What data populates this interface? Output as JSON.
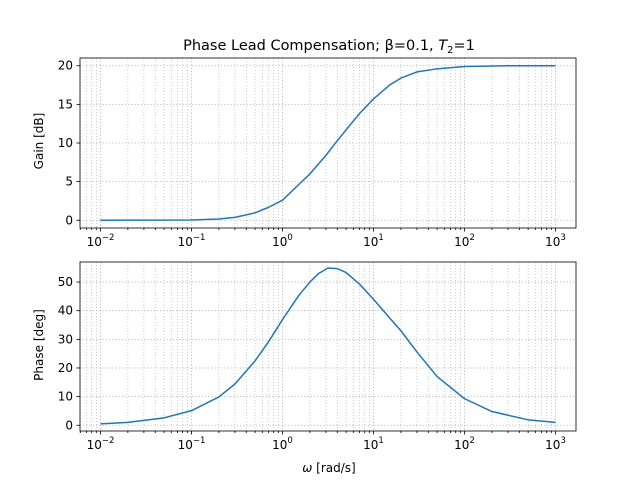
{
  "title": {
    "prefix": "Phase Lead Compensation; β=0.1, ",
    "t_symbol": "T",
    "t_sub": "2",
    "t_value": "=1"
  },
  "colors": {
    "series": "#1f77b4"
  },
  "chart_data": [
    {
      "type": "line",
      "name": "gain",
      "xscale": "log",
      "xlim": [
        0.01,
        1000
      ],
      "ylim": [
        -1,
        21
      ],
      "grid": true,
      "ylabel": "Gain [dB]",
      "xlabel": "",
      "x_ticks": [
        {
          "base": "10",
          "exp": "−2"
        },
        {
          "base": "10",
          "exp": "−1"
        },
        {
          "base": "10",
          "exp": "0"
        },
        {
          "base": "10",
          "exp": "1"
        },
        {
          "base": "10",
          "exp": "2"
        },
        {
          "base": "10",
          "exp": "3"
        }
      ],
      "y_ticks": [
        "0",
        "5",
        "10",
        "15",
        "20"
      ],
      "series": [
        {
          "x": [
            0.01,
            0.1,
            0.2,
            0.3,
            0.5,
            0.7,
            1,
            1.5,
            2,
            3,
            4,
            5,
            7,
            10,
            15,
            20,
            30,
            50,
            100,
            300,
            1000
          ],
          "values": [
            0.0,
            0.04,
            0.17,
            0.38,
            0.96,
            1.67,
            2.6,
            4.6,
            6.0,
            8.4,
            10.3,
            11.7,
            13.8,
            15.7,
            17.5,
            18.4,
            19.2,
            19.6,
            19.9,
            20.0,
            20.0
          ]
        }
      ]
    },
    {
      "type": "line",
      "name": "phase",
      "xscale": "log",
      "xlim": [
        0.01,
        1000
      ],
      "ylim": [
        -2,
        57
      ],
      "grid": true,
      "ylabel": "Phase [deg]",
      "xlabel_symbol": "ω",
      "xlabel_unit": " [rad/s]",
      "x_ticks": [
        {
          "base": "10",
          "exp": "−2"
        },
        {
          "base": "10",
          "exp": "−1"
        },
        {
          "base": "10",
          "exp": "0"
        },
        {
          "base": "10",
          "exp": "1"
        },
        {
          "base": "10",
          "exp": "2"
        },
        {
          "base": "10",
          "exp": "3"
        }
      ],
      "y_ticks": [
        "0",
        "10",
        "20",
        "30",
        "40",
        "50"
      ],
      "series": [
        {
          "x": [
            0.01,
            0.02,
            0.05,
            0.1,
            0.2,
            0.3,
            0.5,
            0.7,
            1,
            1.5,
            2,
            2.5,
            3.16,
            4,
            5,
            7,
            10,
            15,
            20,
            30,
            50,
            100,
            200,
            500,
            1000
          ],
          "values": [
            0.5,
            1.0,
            2.6,
            5.1,
            9.9,
            14.4,
            22.5,
            29.1,
            36.9,
            45.2,
            50.0,
            53.0,
            54.9,
            54.7,
            53.3,
            49.3,
            44.0,
            37.5,
            33.0,
            25.6,
            17.0,
            9.3,
            4.8,
            1.9,
            1.0
          ]
        }
      ]
    }
  ]
}
